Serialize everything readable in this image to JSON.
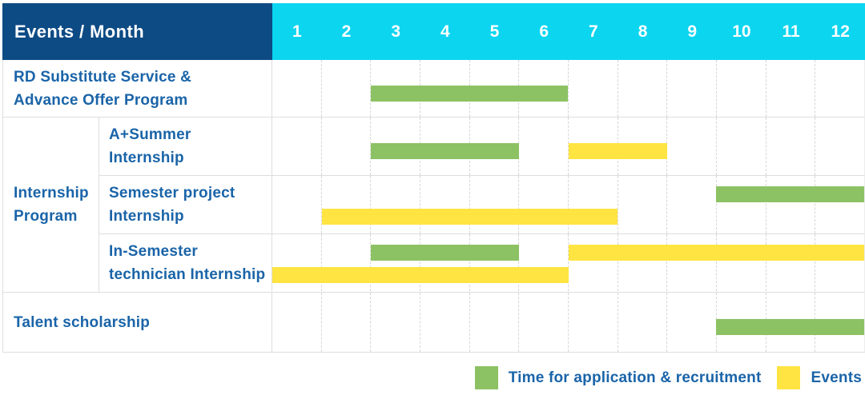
{
  "header": {
    "title": "Events / Month",
    "months": [
      "1",
      "2",
      "3",
      "4",
      "5",
      "6",
      "7",
      "8",
      "9",
      "10",
      "11",
      "12"
    ]
  },
  "colors": {
    "navy": "#0d4b85",
    "cyan": "#0cd5f0",
    "green": "#8cc263",
    "yellow": "#ffe442",
    "text_blue": "#1a64a8"
  },
  "group": {
    "label_lines": [
      "Internship",
      "Program"
    ]
  },
  "rows": [
    {
      "id": "rd-substitute-service",
      "label_lines": [
        "RD Substitute Service &",
        "Advance Offer Program"
      ],
      "bars": [
        {
          "type": "recruitment",
          "start": 3,
          "end": 6,
          "lane": "single"
        }
      ]
    },
    {
      "id": "a-plus-summer-internship",
      "label_lines": [
        "A+Summer",
        "Internship"
      ],
      "bars": [
        {
          "type": "recruitment",
          "start": 3,
          "end": 5,
          "lane": "single"
        },
        {
          "type": "event",
          "start": 7,
          "end": 8,
          "lane": "single"
        }
      ]
    },
    {
      "id": "semester-project-internship",
      "label_lines": [
        "Semester project",
        "Internship"
      ],
      "bars": [
        {
          "type": "recruitment",
          "start": 10,
          "end": 12,
          "lane": "top"
        },
        {
          "type": "event",
          "start": 2,
          "end": 7,
          "lane": "bottom"
        }
      ]
    },
    {
      "id": "in-semester-technician-internship",
      "label_lines": [
        "In-Semester",
        "technician Internship"
      ],
      "bars": [
        {
          "type": "recruitment",
          "start": 3,
          "end": 5,
          "lane": "top"
        },
        {
          "type": "event",
          "start": 7,
          "end": 12,
          "lane": "top"
        },
        {
          "type": "event",
          "start": 1,
          "end": 6,
          "lane": "bottom"
        }
      ]
    },
    {
      "id": "talent-scholarship",
      "label_lines": [
        "Talent scholarship"
      ],
      "bars": [
        {
          "type": "recruitment",
          "start": 10,
          "end": 12,
          "lane": "single"
        }
      ]
    }
  ],
  "legend": {
    "items": [
      {
        "type": "recruitment",
        "label": "Time for application & recruitment",
        "color": "#8cc263"
      },
      {
        "type": "event",
        "label": "Events",
        "color": "#ffe442"
      }
    ]
  },
  "chart_data": {
    "type": "bar",
    "subtype": "gantt-timeline",
    "title": "Events / Month",
    "x_axis": {
      "label": "Month",
      "ticks": [
        1,
        2,
        3,
        4,
        5,
        6,
        7,
        8,
        9,
        10,
        11,
        12
      ],
      "range": [
        1,
        12
      ]
    },
    "grid": true,
    "legend_position": "bottom-right",
    "series_legend": [
      {
        "name": "Time for application & recruitment",
        "color": "#8cc263"
      },
      {
        "name": "Events",
        "color": "#ffe442"
      }
    ],
    "tasks": [
      {
        "group": null,
        "name": "RD Substitute Service & Advance Offer Program",
        "bars": [
          {
            "series": "Time for application & recruitment",
            "start_month": 3,
            "end_month": 6
          }
        ]
      },
      {
        "group": "Internship Program",
        "name": "A+Summer Internship",
        "bars": [
          {
            "series": "Time for application & recruitment",
            "start_month": 3,
            "end_month": 5
          },
          {
            "series": "Events",
            "start_month": 7,
            "end_month": 8
          }
        ]
      },
      {
        "group": "Internship Program",
        "name": "Semester project Internship",
        "bars": [
          {
            "series": "Time for application & recruitment",
            "start_month": 10,
            "end_month": 12
          },
          {
            "series": "Events",
            "start_month": 2,
            "end_month": 7
          }
        ]
      },
      {
        "group": "Internship Program",
        "name": "In-Semester technician Internship",
        "bars": [
          {
            "series": "Time for application & recruitment",
            "start_month": 3,
            "end_month": 5
          },
          {
            "series": "Events",
            "start_month": 7,
            "end_month": 12
          },
          {
            "series": "Events",
            "start_month": 1,
            "end_month": 6
          }
        ]
      },
      {
        "group": null,
        "name": "Talent scholarship",
        "bars": [
          {
            "series": "Time for application & recruitment",
            "start_month": 10,
            "end_month": 12
          }
        ]
      }
    ]
  }
}
